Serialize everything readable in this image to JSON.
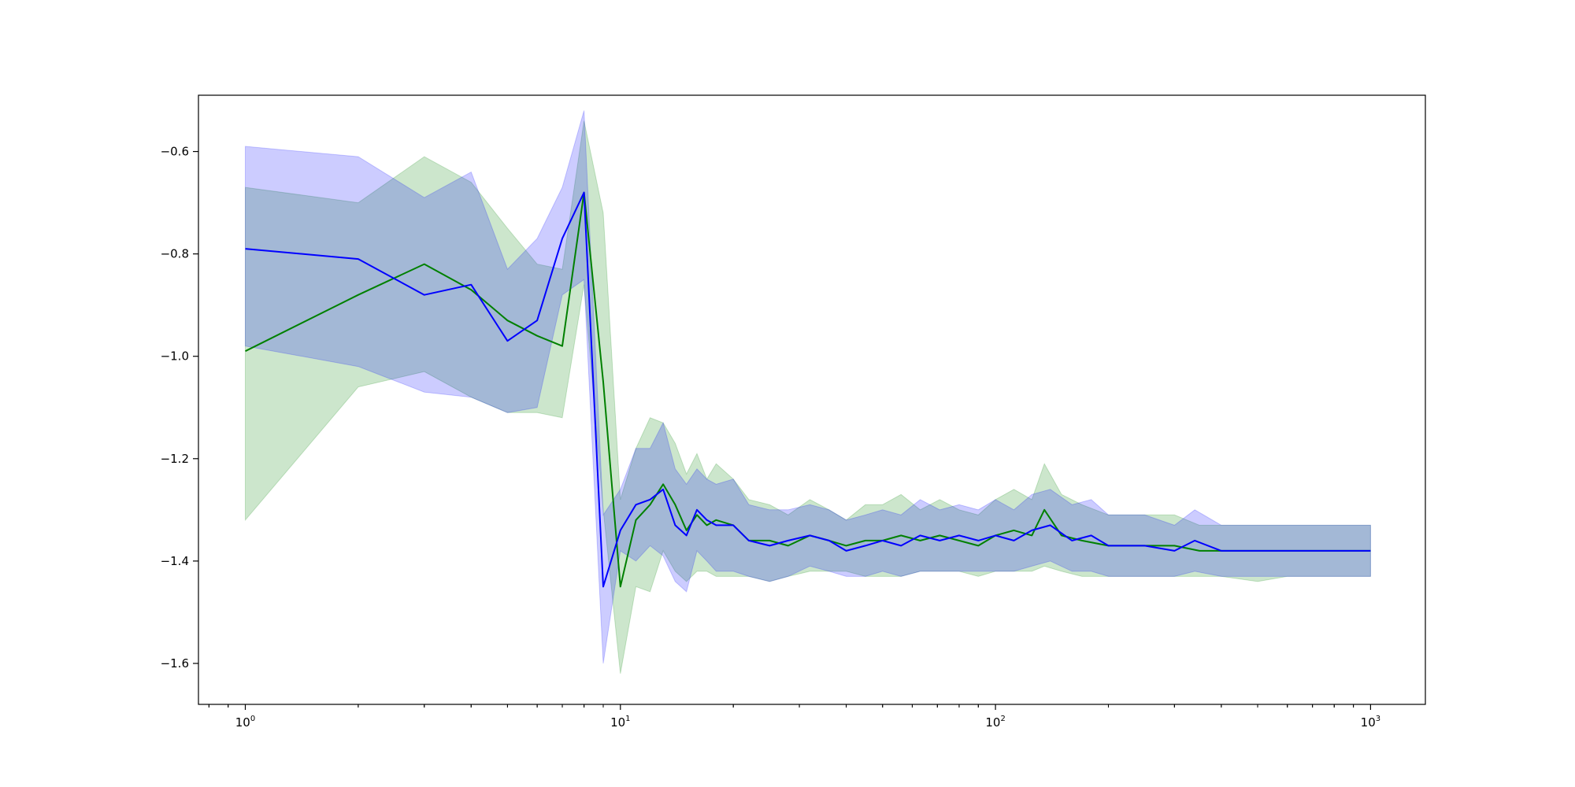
{
  "chart_data": {
    "type": "line",
    "title": "",
    "xlabel": "",
    "ylabel": "",
    "x_scale": "log",
    "xlim": [
      0.75,
      1400
    ],
    "ylim": [
      -1.68,
      -0.49
    ],
    "grid": false,
    "legend": "none",
    "x_ticks": [
      {
        "value": 1,
        "base": "10",
        "exp": "0"
      },
      {
        "value": 10,
        "base": "10",
        "exp": "1"
      },
      {
        "value": 100,
        "base": "10",
        "exp": "2"
      },
      {
        "value": 1000,
        "base": "10",
        "exp": "3"
      }
    ],
    "y_ticks": [
      {
        "value": -1.6,
        "label": "−1.6"
      },
      {
        "value": -1.4,
        "label": "−1.4"
      },
      {
        "value": -1.2,
        "label": "−1.2"
      },
      {
        "value": -1.0,
        "label": "−1.0"
      },
      {
        "value": -0.8,
        "label": "−0.8"
      },
      {
        "value": -0.6,
        "label": "−0.6"
      }
    ],
    "series": [
      {
        "color": "#008000",
        "band_color": "#008000",
        "x": [
          1,
          2,
          3,
          4,
          5,
          6,
          7,
          8,
          9,
          10,
          11,
          12,
          13,
          14,
          15,
          16,
          17,
          18,
          20,
          22,
          25,
          28,
          32,
          36,
          40,
          45,
          50,
          56,
          63,
          71,
          80,
          90,
          100,
          112,
          125,
          135,
          150,
          170,
          200,
          250,
          300,
          350,
          400,
          500,
          600,
          700,
          800,
          1000
        ],
        "y": [
          -0.99,
          -0.88,
          -0.82,
          -0.87,
          -0.93,
          -0.96,
          -0.98,
          -0.68,
          -1.05,
          -1.45,
          -1.32,
          -1.29,
          -1.25,
          -1.29,
          -1.34,
          -1.31,
          -1.33,
          -1.32,
          -1.33,
          -1.36,
          -1.36,
          -1.37,
          -1.35,
          -1.36,
          -1.37,
          -1.36,
          -1.36,
          -1.35,
          -1.36,
          -1.35,
          -1.36,
          -1.37,
          -1.35,
          -1.34,
          -1.35,
          -1.3,
          -1.35,
          -1.36,
          -1.37,
          -1.37,
          -1.37,
          -1.38,
          -1.38,
          -1.38,
          -1.38,
          -1.38,
          -1.38,
          -1.38
        ],
        "lower": [
          -1.32,
          -1.06,
          -1.03,
          -1.08,
          -1.11,
          -1.11,
          -1.12,
          -0.86,
          -1.3,
          -1.62,
          -1.45,
          -1.46,
          -1.38,
          -1.42,
          -1.44,
          -1.42,
          -1.42,
          -1.43,
          -1.43,
          -1.43,
          -1.44,
          -1.43,
          -1.42,
          -1.42,
          -1.42,
          -1.43,
          -1.43,
          -1.43,
          -1.42,
          -1.42,
          -1.42,
          -1.43,
          -1.42,
          -1.42,
          -1.42,
          -1.41,
          -1.42,
          -1.43,
          -1.43,
          -1.43,
          -1.43,
          -1.43,
          -1.43,
          -1.44,
          -1.43,
          -1.43,
          -1.43,
          -1.43
        ],
        "upper": [
          -0.67,
          -0.7,
          -0.61,
          -0.66,
          -0.75,
          -0.82,
          -0.83,
          -0.54,
          -0.72,
          -1.28,
          -1.18,
          -1.12,
          -1.13,
          -1.17,
          -1.23,
          -1.19,
          -1.24,
          -1.21,
          -1.24,
          -1.28,
          -1.29,
          -1.31,
          -1.28,
          -1.3,
          -1.32,
          -1.29,
          -1.29,
          -1.27,
          -1.3,
          -1.28,
          -1.3,
          -1.31,
          -1.28,
          -1.26,
          -1.28,
          -1.21,
          -1.27,
          -1.29,
          -1.31,
          -1.31,
          -1.31,
          -1.33,
          -1.33,
          -1.33,
          -1.33,
          -1.33,
          -1.33,
          -1.33
        ]
      },
      {
        "color": "#0000ff",
        "band_color": "#0000ff",
        "x": [
          1,
          2,
          3,
          4,
          5,
          6,
          7,
          8,
          9,
          10,
          11,
          12,
          13,
          14,
          15,
          16,
          17,
          18,
          20,
          22,
          25,
          28,
          32,
          36,
          40,
          45,
          50,
          56,
          63,
          71,
          80,
          90,
          100,
          112,
          125,
          140,
          160,
          180,
          200,
          250,
          300,
          340,
          400,
          500,
          600,
          700,
          800,
          1000
        ],
        "y": [
          -0.79,
          -0.81,
          -0.88,
          -0.86,
          -0.97,
          -0.93,
          -0.77,
          -0.68,
          -1.45,
          -1.34,
          -1.29,
          -1.28,
          -1.26,
          -1.33,
          -1.35,
          -1.3,
          -1.32,
          -1.33,
          -1.33,
          -1.36,
          -1.37,
          -1.36,
          -1.35,
          -1.36,
          -1.38,
          -1.37,
          -1.36,
          -1.37,
          -1.35,
          -1.36,
          -1.35,
          -1.36,
          -1.35,
          -1.36,
          -1.34,
          -1.33,
          -1.36,
          -1.35,
          -1.37,
          -1.37,
          -1.38,
          -1.36,
          -1.38,
          -1.38,
          -1.38,
          -1.38,
          -1.38,
          -1.38
        ],
        "lower": [
          -0.98,
          -1.02,
          -1.07,
          -1.08,
          -1.11,
          -1.1,
          -0.88,
          -0.85,
          -1.6,
          -1.38,
          -1.4,
          -1.37,
          -1.39,
          -1.44,
          -1.46,
          -1.38,
          -1.4,
          -1.42,
          -1.42,
          -1.43,
          -1.44,
          -1.43,
          -1.41,
          -1.42,
          -1.43,
          -1.43,
          -1.42,
          -1.43,
          -1.42,
          -1.42,
          -1.42,
          -1.42,
          -1.42,
          -1.42,
          -1.41,
          -1.4,
          -1.42,
          -1.42,
          -1.43,
          -1.43,
          -1.43,
          -1.42,
          -1.43,
          -1.43,
          -1.43,
          -1.43,
          -1.43,
          -1.43
        ],
        "upper": [
          -0.59,
          -0.61,
          -0.69,
          -0.64,
          -0.83,
          -0.77,
          -0.67,
          -0.52,
          -1.31,
          -1.26,
          -1.18,
          -1.18,
          -1.13,
          -1.22,
          -1.25,
          -1.22,
          -1.24,
          -1.25,
          -1.24,
          -1.29,
          -1.3,
          -1.3,
          -1.29,
          -1.3,
          -1.32,
          -1.31,
          -1.3,
          -1.31,
          -1.28,
          -1.3,
          -1.29,
          -1.3,
          -1.28,
          -1.3,
          -1.27,
          -1.26,
          -1.29,
          -1.28,
          -1.31,
          -1.31,
          -1.33,
          -1.3,
          -1.33,
          -1.33,
          -1.33,
          -1.33,
          -1.33,
          -1.33
        ]
      }
    ]
  }
}
